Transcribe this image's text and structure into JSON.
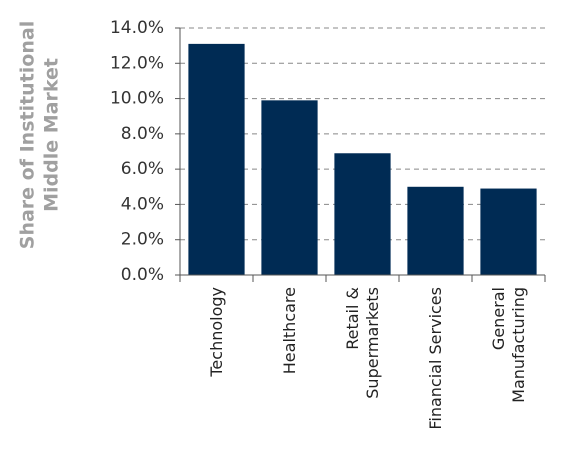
{
  "chart_data": {
    "type": "bar",
    "y_label": [
      "Share of Institutional",
      "Middle Market"
    ],
    "categories": [
      "Technology",
      "Healthcare",
      "Retail &\nSupermarkets",
      "Financial Services",
      "General\nManufacturing"
    ],
    "values": [
      13.1,
      9.9,
      6.9,
      5.0,
      4.9
    ],
    "color": "#002b54",
    "ylim": [
      0,
      14
    ],
    "yticks": [
      {
        "value": 0,
        "label": "0.0%"
      },
      {
        "value": 2,
        "label": "2.0%"
      },
      {
        "value": 4,
        "label": "4.0%"
      },
      {
        "value": 6,
        "label": "6.0%"
      },
      {
        "value": 8,
        "label": "8.0%"
      },
      {
        "value": 10,
        "label": "10.0%"
      },
      {
        "value": 12,
        "label": "12.0%"
      },
      {
        "value": 14,
        "label": "14.0%"
      }
    ],
    "grid": true
  }
}
